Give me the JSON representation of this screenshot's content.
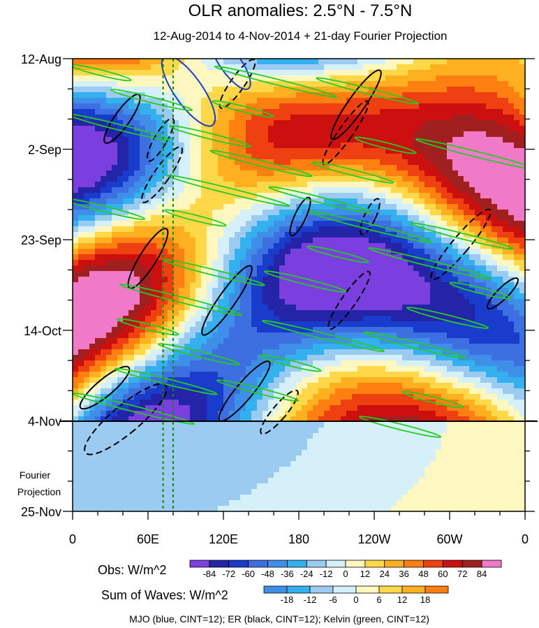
{
  "chart_data": {
    "type": "heatmap",
    "title": "OLR anomalies: 2.5°N - 7.5°N",
    "subtitle": "12-Aug-2014 to 4-Nov-2014 + 21-day Fourier Projection",
    "y_ticks": [
      "12-Aug",
      "2-Sep",
      "23-Sep",
      "14-Oct",
      "4-Nov",
      "25-Nov"
    ],
    "x_ticks": [
      "0",
      "60E",
      "120E",
      "180",
      "120W",
      "60W",
      "0"
    ],
    "x_range_deg": [
      0,
      360
    ],
    "y_range_dates": [
      "2014-08-12",
      "2014-11-25"
    ],
    "obs_end_date": "2014-11-04",
    "projection_label": [
      "Fourier",
      "Projection"
    ],
    "reference_lines_deg": [
      72,
      80
    ],
    "obs_colorbar": {
      "label": "Obs: W/m^2",
      "levels": [
        -84,
        -72,
        -60,
        -48,
        -36,
        -24,
        -12,
        0,
        12,
        24,
        36,
        48,
        60,
        72,
        84
      ],
      "colors": [
        "#7b3fe0",
        "#2424a8",
        "#1a3ccc",
        "#3d6fe0",
        "#3f8fe8",
        "#35b0ee",
        "#9ccbf2",
        "#d6f0fa",
        "#fff7c0",
        "#ffd84a",
        "#ffb020",
        "#ff8010",
        "#ee4010",
        "#cc1010",
        "#a02020",
        "#f07ac8"
      ]
    },
    "wave_colorbar": {
      "label": "Sum of Waves: W/m^2",
      "levels": [
        -18,
        -12,
        -6,
        0,
        6,
        12,
        18
      ],
      "colors": [
        "#3f8fe8",
        "#35b0ee",
        "#9ccbf2",
        "#d6f0fa",
        "#fff7c0",
        "#ffd84a",
        "#ffb020",
        "#ff8010"
      ]
    },
    "footer": "MJO (blue, CINT=12); ER (black, CINT=12); Kelvin (green, CINT=12)",
    "series_colors": {
      "mjo": "#1a3ccc",
      "er": "#000000",
      "kelvin": "#22cc22"
    }
  }
}
